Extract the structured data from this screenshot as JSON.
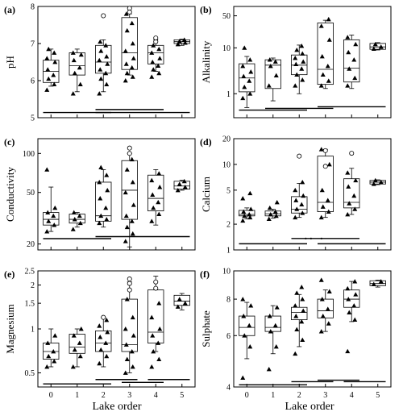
{
  "figure": {
    "x_title": "Lake order",
    "categories": [
      "0",
      "1",
      "2",
      "3",
      "4",
      "5"
    ]
  },
  "chart_data": [
    {
      "id": "a",
      "type": "box",
      "label": "(a)",
      "ylabel": "pH",
      "scale": "linear",
      "ylim": [
        5,
        8
      ],
      "yticks": [
        5,
        6,
        7,
        8
      ],
      "boxes": [
        {
          "whisker_low": 5.85,
          "q1": 5.95,
          "median": 6.25,
          "q3": 6.55,
          "whisker_high": 6.85
        },
        {
          "whisker_low": 5.7,
          "q1": 6.15,
          "median": 6.4,
          "q3": 6.75,
          "whisker_high": 6.85
        },
        {
          "whisker_low": 5.7,
          "q1": 6.2,
          "median": 6.5,
          "q3": 6.95,
          "whisker_high": 7.1
        },
        {
          "whisker_low": 6.15,
          "q1": 6.3,
          "median": 6.75,
          "q3": 7.7,
          "whisker_high": 7.8
        },
        {
          "whisker_low": 6.25,
          "q1": 6.45,
          "median": 6.75,
          "q3": 6.95,
          "whisker_high": 7.1
        },
        {
          "whisker_low": 6.95,
          "q1": 7.0,
          "median": 7.05,
          "q3": 7.1,
          "whisker_high": 7.12
        }
      ],
      "points": [
        [
          5.75,
          5.9,
          6.05,
          6.15,
          6.3,
          6.5,
          6.6,
          6.75,
          6.85
        ],
        [
          5.65,
          5.9,
          6.2,
          6.35,
          6.55,
          6.7,
          6.75
        ],
        [
          5.65,
          5.9,
          6.05,
          6.2,
          6.3,
          6.45,
          6.55,
          6.65,
          6.8,
          6.95,
          7.05
        ],
        [
          6.0,
          6.1,
          6.2,
          6.35,
          6.45,
          6.6,
          6.8,
          7.0,
          7.35,
          7.55,
          7.8
        ],
        [
          6.1,
          6.2,
          6.3,
          6.4,
          6.5,
          6.6,
          6.75,
          6.85,
          6.95
        ],
        [
          6.98,
          7.02,
          7.06,
          7.1
        ]
      ],
      "outliers": [
        [],
        [],
        [
          7.75
        ],
        [
          7.95,
          7.85
        ],
        [
          7.05,
          7.15
        ],
        []
      ],
      "bars": [
        [
          0,
          2,
          5.14
        ],
        [
          2,
          4,
          5.22
        ],
        [
          2,
          5,
          5.14
        ]
      ],
      "dots": []
    },
    {
      "id": "b",
      "type": "box",
      "label": "(b)",
      "ylabel": "Alkalinity",
      "scale": "log",
      "ylim": [
        0.3,
        80
      ],
      "yticks": [
        1,
        10,
        50
      ],
      "boxes": [
        {
          "whisker_low": 0.5,
          "q1": 1.1,
          "median": 2.2,
          "q3": 4.5,
          "whisker_high": 6.5
        },
        {
          "whisker_low": 0.7,
          "q1": 1.3,
          "median": 4.2,
          "q3": 5.5,
          "whisker_high": 6.0
        },
        {
          "whisker_low": 1.0,
          "q1": 2.6,
          "median": 4.2,
          "q3": 7.0,
          "whisker_high": 11.5
        },
        {
          "whisker_low": 1.3,
          "q1": 1.6,
          "median": 3.4,
          "q3": 35,
          "whisker_high": 40
        },
        {
          "whisker_low": 1.3,
          "q1": 1.8,
          "median": 3.6,
          "q3": 15,
          "whisker_high": 19
        },
        {
          "whisker_low": 9,
          "q1": 9.3,
          "median": 10.5,
          "q3": 12.5,
          "whisker_high": 13
        }
      ],
      "points": [
        [
          0.8,
          1.0,
          1.4,
          1.9,
          2.4,
          3.0,
          4.0,
          5.5,
          10
        ],
        [
          1.5,
          2.5,
          4.0,
          5.0,
          5.5
        ],
        [
          1.5,
          2.0,
          2.6,
          3.5,
          4.4,
          5.0,
          6.0,
          7.5,
          9.0,
          11
        ],
        [
          1.5,
          1.9,
          2.6,
          4.0,
          6.5,
          15,
          30,
          42
        ],
        [
          1.5,
          2.2,
          3.5,
          5.5,
          8.0,
          12,
          17
        ],
        [
          9.5,
          10.5,
          12
        ]
      ],
      "outliers": [
        [],
        [],
        [],
        [],
        [],
        []
      ],
      "bars": [
        [
          0,
          2,
          0.44
        ],
        [
          1,
          3,
          0.48
        ],
        [
          3,
          5,
          0.52
        ]
      ],
      "dots": []
    },
    {
      "id": "c",
      "type": "box",
      "label": "(c)",
      "ylabel": "Conductivity",
      "scale": "log",
      "ylim": [
        18,
        130
      ],
      "yticks": [
        20,
        50,
        100
      ],
      "boxes": [
        {
          "whisker_low": 25,
          "q1": 28,
          "median": 31,
          "q3": 35,
          "whisker_high": 55
        },
        {
          "whisker_low": 27,
          "q1": 29,
          "median": 31,
          "q3": 34,
          "whisker_high": 35
        },
        {
          "whisker_low": 27,
          "q1": 30,
          "median": 33,
          "q3": 60,
          "whisker_high": 75
        },
        {
          "whisker_low": 19,
          "q1": 31,
          "median": 52,
          "q3": 88,
          "whisker_high": 100
        },
        {
          "whisker_low": 28,
          "q1": 36,
          "median": 45,
          "q3": 68,
          "whisker_high": 75
        },
        {
          "whisker_low": 52,
          "q1": 53,
          "median": 56,
          "q3": 61,
          "whisker_high": 62
        }
      ],
      "points": [
        [
          25,
          28,
          30,
          33,
          35,
          38,
          75
        ],
        [
          26,
          29,
          31,
          33,
          35
        ],
        [
          29,
          31,
          33,
          38,
          45,
          52,
          60,
          68,
          78
        ],
        [
          21,
          24,
          27,
          30,
          33,
          40,
          50,
          60,
          75,
          90
        ],
        [
          30,
          34,
          38,
          42,
          48,
          55,
          62,
          70
        ],
        [
          52,
          55,
          58,
          61
        ]
      ],
      "outliers": [
        [],
        [],
        [],
        [
          110,
          100
        ],
        [],
        []
      ],
      "bars": [
        [
          0,
          2,
          22.0
        ],
        [
          2,
          5,
          22.8
        ]
      ],
      "dots": []
    },
    {
      "id": "d",
      "type": "box",
      "label": "(d)",
      "ylabel": "Calcium",
      "scale": "log",
      "ylim": [
        1,
        20
      ],
      "yticks": [
        1,
        2,
        5,
        10,
        20
      ],
      "boxes": [
        {
          "whisker_low": 2.3,
          "q1": 2.5,
          "median": 2.6,
          "q3": 2.9,
          "whisker_high": 3.1
        },
        {
          "whisker_low": 2.35,
          "q1": 2.5,
          "median": 2.65,
          "q3": 2.85,
          "whisker_high": 3.0
        },
        {
          "whisker_low": 2.4,
          "q1": 2.7,
          "median": 3.0,
          "q3": 4.2,
          "whisker_high": 6.0
        },
        {
          "whisker_low": 2.4,
          "q1": 2.8,
          "median": 3.6,
          "q3": 12.5,
          "whisker_high": 15
        },
        {
          "whisker_low": 2.6,
          "q1": 3.1,
          "median": 3.6,
          "q3": 6.8,
          "whisker_high": 9.0
        },
        {
          "whisker_low": 5.8,
          "q1": 5.9,
          "median": 6.2,
          "q3": 6.5,
          "whisker_high": 6.6
        }
      ],
      "points": [
        [
          2.2,
          2.4,
          2.5,
          2.6,
          2.8,
          3.0,
          4.0,
          4.6
        ],
        [
          2.3,
          2.5,
          2.6,
          2.8,
          3.1,
          3.6
        ],
        [
          2.4,
          2.7,
          3.0,
          3.4,
          3.8,
          4.3,
          5.0,
          6.2
        ],
        [
          2.4,
          2.8,
          3.2,
          3.8,
          5.0,
          10.0,
          15.0
        ],
        [
          2.6,
          3.0,
          3.5,
          4.3,
          5.5,
          6.5,
          8.0
        ],
        [
          5.9,
          6.2,
          6.5
        ]
      ],
      "outliers": [
        [],
        [],
        [
          12.5
        ],
        [
          14.5,
          9.5
        ],
        [
          13.5
        ],
        []
      ],
      "bars": [
        [
          0,
          2,
          1.18
        ],
        [
          2,
          4,
          1.36
        ],
        [
          3,
          5,
          1.18
        ]
      ],
      "dots": [
        [
          2.75,
          1.36
        ],
        [
          2.95,
          1.36
        ],
        [
          3.35,
          1.36
        ]
      ]
    },
    {
      "id": "e",
      "type": "box",
      "label": "(e)",
      "ylabel": "Magnesium",
      "scale": "log",
      "ylim": [
        0.4,
        2.5
      ],
      "yticks": [
        0.5,
        1,
        1.5,
        2,
        2.5
      ],
      "boxes": [
        {
          "whisker_low": 0.55,
          "q1": 0.62,
          "median": 0.7,
          "q3": 0.8,
          "whisker_high": 1.0
        },
        {
          "whisker_low": 0.55,
          "q1": 0.68,
          "median": 0.75,
          "q3": 0.92,
          "whisker_high": 1.0
        },
        {
          "whisker_low": 0.55,
          "q1": 0.7,
          "median": 0.8,
          "q3": 0.97,
          "whisker_high": 1.2
        },
        {
          "whisker_low": 0.5,
          "q1": 0.7,
          "median": 0.78,
          "q3": 1.6,
          "whisker_high": 2.1
        },
        {
          "whisker_low": 0.7,
          "q1": 0.8,
          "median": 0.95,
          "q3": 1.85,
          "whisker_high": 2.3
        },
        {
          "whisker_low": 1.35,
          "q1": 1.45,
          "median": 1.55,
          "q3": 1.7,
          "whisker_high": 1.75
        }
      ],
      "points": [
        [
          0.55,
          0.6,
          0.65,
          0.7,
          0.8,
          0.9
        ],
        [
          0.55,
          0.65,
          0.72,
          0.8,
          0.9,
          1.0
        ],
        [
          0.58,
          0.65,
          0.72,
          0.8,
          0.88,
          0.95,
          1.05,
          1.15
        ],
        [
          0.5,
          0.55,
          0.62,
          0.7,
          0.78,
          0.9,
          1.0,
          1.2,
          1.6
        ],
        [
          0.55,
          0.62,
          0.7,
          0.8,
          0.9,
          1.0,
          1.2,
          1.5
        ],
        [
          1.42,
          1.5,
          1.6
        ]
      ],
      "outliers": [
        [],
        [],
        [
          1.2
        ],
        [
          2.2,
          2.05,
          1.85
        ],
        [
          2.1,
          1.9
        ],
        []
      ],
      "bars": [
        [
          0,
          2,
          0.42
        ],
        [
          2,
          3,
          0.45
        ],
        [
          3,
          4,
          0.43
        ],
        [
          4,
          5,
          0.45
        ]
      ],
      "dots": []
    },
    {
      "id": "f",
      "type": "box",
      "label": "(f)",
      "ylabel": "Sulphate",
      "scale": "log",
      "ylim": [
        4,
        10
      ],
      "yticks": [
        4,
        6,
        8,
        10
      ],
      "boxes": [
        {
          "whisker_low": 5.0,
          "q1": 6.0,
          "median": 6.4,
          "q3": 7.0,
          "whisker_high": 7.8
        },
        {
          "whisker_low": 5.2,
          "q1": 6.2,
          "median": 6.4,
          "q3": 7.0,
          "whisker_high": 7.6
        },
        {
          "whisker_low": 5.5,
          "q1": 6.8,
          "median": 7.2,
          "q3": 7.5,
          "whisker_high": 8.3
        },
        {
          "whisker_low": 6.2,
          "q1": 6.9,
          "median": 7.3,
          "q3": 8.0,
          "whisker_high": 8.6
        },
        {
          "whisker_low": 6.7,
          "q1": 7.5,
          "median": 8.0,
          "q3": 8.6,
          "whisker_high": 9.2
        },
        {
          "whisker_low": 8.8,
          "q1": 8.9,
          "median": 9.05,
          "q3": 9.25,
          "whisker_high": 9.3
        }
      ],
      "points": [
        [
          4.3,
          5.5,
          6.0,
          6.5,
          7.0,
          7.6,
          8.0
        ],
        [
          4.6,
          5.5,
          6.2,
          6.5,
          7.0,
          7.5
        ],
        [
          5.2,
          5.8,
          6.3,
          6.7,
          7.0,
          7.3,
          7.6,
          8.0,
          8.4,
          8.8
        ],
        [
          6.2,
          6.6,
          7.0,
          7.4,
          8.0,
          8.5,
          9.3
        ],
        [
          5.3,
          6.8,
          7.2,
          7.6,
          8.0,
          8.3,
          8.7,
          9.2
        ],
        [
          9.0,
          9.2
        ]
      ],
      "outliers": [
        [],
        [],
        [],
        [],
        [],
        []
      ],
      "bars": [
        [
          0,
          2,
          4.07
        ],
        [
          2,
          3,
          4.17
        ],
        [
          3,
          4,
          4.22
        ],
        [
          4,
          5,
          4.17
        ]
      ],
      "dots": []
    }
  ]
}
